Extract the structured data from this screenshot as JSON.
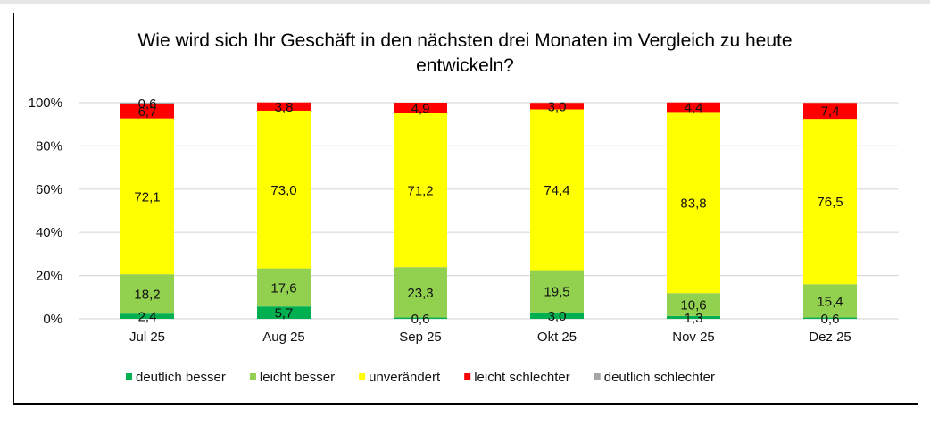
{
  "chart_data": {
    "type": "bar",
    "stacked": true,
    "percent_stacked": true,
    "title": "Wie wird sich Ihr Geschäft in den nächsten drei Monaten im Vergleich zu heute entwickeln?",
    "title_lines": [
      "Wie wird sich Ihr Geschäft in den nächsten drei Monaten im Vergleich zu heute",
      "entwickeln?"
    ],
    "xlabel": "",
    "ylabel": "",
    "ylim": [
      0,
      100
    ],
    "yticks": [
      0,
      20,
      40,
      60,
      80,
      100
    ],
    "ytick_labels": [
      "0%",
      "20%",
      "40%",
      "60%",
      "80%",
      "100%"
    ],
    "grid": true,
    "legend_position": "bottom",
    "categories": [
      "Jul 25",
      "Aug 25",
      "Sep 25",
      "Okt 25",
      "Nov 25",
      "Dez 25"
    ],
    "series": [
      {
        "name": "deutlich besser",
        "color": "#00B050",
        "values": [
          2.4,
          5.7,
          0.6,
          3.0,
          1.3,
          0.6
        ],
        "labels": [
          "2,4",
          "5,7",
          "0,6",
          "3,0",
          "1,3",
          "0,6"
        ]
      },
      {
        "name": "leicht besser",
        "color": "#92D050",
        "values": [
          18.2,
          17.6,
          23.3,
          19.5,
          10.6,
          15.4
        ],
        "labels": [
          "18,2",
          "17,6",
          "23,3",
          "19,5",
          "10,6",
          "15,4"
        ]
      },
      {
        "name": "unverändert",
        "color": "#FFFF00",
        "values": [
          72.1,
          73.0,
          71.2,
          74.4,
          83.8,
          76.5
        ],
        "labels": [
          "72,1",
          "73,0",
          "71,2",
          "74,4",
          "83,8",
          "76,5"
        ]
      },
      {
        "name": "leicht schlechter",
        "color": "#FF0000",
        "values": [
          6.7,
          3.8,
          4.9,
          3.0,
          4.4,
          7.4
        ],
        "labels": [
          "6,7",
          "3,8",
          "4,9",
          "3,0",
          "4,4",
          "7,4"
        ]
      },
      {
        "name": "deutlich schlechter",
        "color": "#A6A6A6",
        "values": [
          0.6,
          0,
          0,
          0,
          0,
          0
        ],
        "labels": [
          "0,6",
          "",
          "",
          "",
          "",
          ""
        ]
      }
    ]
  }
}
